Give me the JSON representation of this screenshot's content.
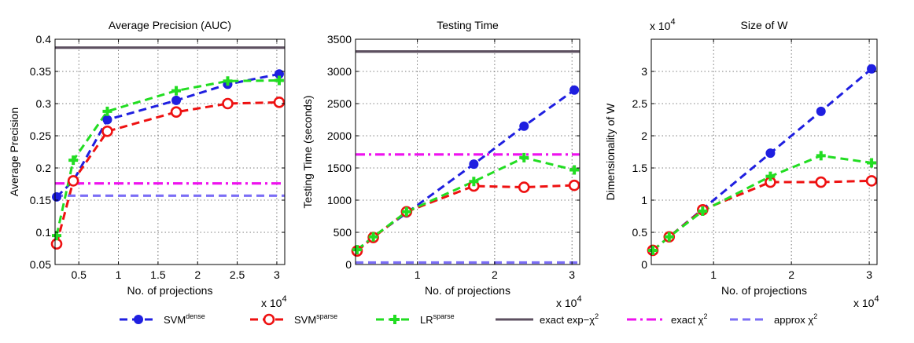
{
  "legend": {
    "items": [
      {
        "key": "svm_dense",
        "base": "SVM",
        "sup": "dense"
      },
      {
        "key": "svm_sparse",
        "base": "SVM",
        "sup": "sparse"
      },
      {
        "key": "lr_sparse",
        "base": "LR",
        "sup": "sparse"
      },
      {
        "key": "exact_exp",
        "base": "exact exp−χ",
        "sup": "2"
      },
      {
        "key": "exact_chi",
        "base": "exact χ",
        "sup": "2"
      },
      {
        "key": "approx_chi",
        "base": "approx χ",
        "sup": "2"
      }
    ]
  },
  "style": {
    "svm_dense": {
      "color": "#1f1fe0",
      "marker": "filled-circle",
      "dash": "dashed"
    },
    "svm_sparse": {
      "color": "#ee1111",
      "marker": "open-circle",
      "dash": "dashed"
    },
    "lr_sparse": {
      "color": "#22dd22",
      "marker": "plus",
      "dash": "dashed"
    },
    "exact_exp": {
      "color": "#5d5060",
      "marker": "none",
      "dash": "solid"
    },
    "exact_chi": {
      "color": "#ee11ee",
      "marker": "none",
      "dash": "dashdot"
    },
    "approx_chi": {
      "color": "#7b6ef6",
      "marker": "none",
      "dash": "dashed"
    }
  },
  "chart_data": [
    {
      "type": "line",
      "title": "Average Precision (AUC)",
      "xlabel": "No. of projections",
      "ylabel": "Average Precision",
      "x_multiplier": "x 10^4",
      "xlim": [
        0.2,
        3.1
      ],
      "ylim": [
        0.05,
        0.4
      ],
      "xticks": [
        0.5,
        1,
        1.5,
        2,
        2.5,
        3
      ],
      "xtick_labels": [
        "0.5",
        "1",
        "1.5",
        "2",
        "2.5",
        "3"
      ],
      "yticks": [
        0.05,
        0.1,
        0.15,
        0.2,
        0.25,
        0.3,
        0.35,
        0.4
      ],
      "ytick_labels": [
        "0.05",
        "0.1",
        "0.15",
        "0.2",
        "0.25",
        "0.3",
        "0.35",
        "0.4"
      ],
      "grid": true,
      "series": [
        {
          "key": "svm_dense",
          "x": [
            0.22,
            0.43,
            0.86,
            1.73,
            2.38,
            3.03
          ],
          "y": [
            0.155,
            0.18,
            0.275,
            0.305,
            0.33,
            0.346
          ]
        },
        {
          "key": "svm_sparse",
          "x": [
            0.22,
            0.43,
            0.86,
            1.73,
            2.38,
            3.03
          ],
          "y": [
            0.082,
            0.18,
            0.257,
            0.287,
            0.3,
            0.302
          ]
        },
        {
          "key": "lr_sparse",
          "x": [
            0.22,
            0.43,
            0.86,
            1.73,
            2.38,
            3.03
          ],
          "y": [
            0.095,
            0.212,
            0.288,
            0.32,
            0.335,
            0.336
          ]
        },
        {
          "key": "exact_exp",
          "x": [
            0.2,
            3.1
          ],
          "y": [
            0.387,
            0.387
          ]
        },
        {
          "key": "exact_chi",
          "x": [
            0.2,
            3.1
          ],
          "y": [
            0.176,
            0.176
          ]
        },
        {
          "key": "approx_chi",
          "x": [
            0.2,
            3.1
          ],
          "y": [
            0.157,
            0.157
          ]
        }
      ]
    },
    {
      "type": "line",
      "title": "Testing Time",
      "xlabel": "No. of projections",
      "ylabel": "Testing Time (seconds)",
      "x_multiplier": "x 10^4",
      "xlim": [
        0.2,
        3.1
      ],
      "ylim": [
        0,
        3500
      ],
      "xticks": [
        1,
        2,
        3
      ],
      "xtick_labels": [
        "1",
        "2",
        "3"
      ],
      "yticks": [
        0,
        500,
        1000,
        1500,
        2000,
        2500,
        3000,
        3500
      ],
      "ytick_labels": [
        "0",
        "500",
        "1000",
        "1500",
        "2000",
        "2500",
        "3000",
        "3500"
      ],
      "grid": true,
      "series": [
        {
          "key": "svm_dense",
          "x": [
            0.22,
            0.43,
            0.86,
            1.73,
            2.38,
            3.03
          ],
          "y": [
            220,
            430,
            800,
            1560,
            2150,
            2710
          ]
        },
        {
          "key": "svm_sparse",
          "x": [
            0.22,
            0.43,
            0.86,
            1.73,
            2.38,
            3.03
          ],
          "y": [
            210,
            420,
            820,
            1220,
            1200,
            1230
          ]
        },
        {
          "key": "lr_sparse",
          "x": [
            0.22,
            0.43,
            0.86,
            1.73,
            2.38,
            3.03
          ],
          "y": [
            230,
            430,
            820,
            1290,
            1660,
            1470
          ]
        },
        {
          "key": "exact_exp",
          "x": [
            0.2,
            3.1
          ],
          "y": [
            3310,
            3310
          ]
        },
        {
          "key": "exact_chi",
          "x": [
            0.2,
            3.1
          ],
          "y": [
            1710,
            1710
          ]
        },
        {
          "key": "approx_chi",
          "x": [
            0.2,
            3.1
          ],
          "y": [
            30,
            30
          ]
        }
      ]
    },
    {
      "type": "line",
      "title": "Size of W",
      "xlabel": "No. of projections",
      "ylabel": "Dimensionality of W",
      "x_multiplier": "x 10^4",
      "y_multiplier": "x 10^4",
      "xlim": [
        0.2,
        3.1
      ],
      "ylim": [
        0,
        3.5
      ],
      "xticks": [
        1,
        2,
        3
      ],
      "xtick_labels": [
        "1",
        "2",
        "3"
      ],
      "yticks": [
        0,
        0.5,
        1,
        1.5,
        2,
        2.5,
        3
      ],
      "ytick_labels": [
        "0",
        "0.5",
        "1",
        "1.5",
        "2",
        "2.5",
        "3"
      ],
      "grid": true,
      "series": [
        {
          "key": "svm_dense",
          "x": [
            0.22,
            0.43,
            0.86,
            1.73,
            2.38,
            3.03
          ],
          "y": [
            0.22,
            0.43,
            0.86,
            1.73,
            2.38,
            3.04
          ]
        },
        {
          "key": "svm_sparse",
          "x": [
            0.22,
            0.43,
            0.86,
            1.73,
            2.38,
            3.03
          ],
          "y": [
            0.22,
            0.43,
            0.85,
            1.28,
            1.28,
            1.3
          ]
        },
        {
          "key": "lr_sparse",
          "x": [
            0.22,
            0.43,
            0.86,
            1.73,
            2.38,
            3.03
          ],
          "y": [
            0.22,
            0.43,
            0.83,
            1.37,
            1.69,
            1.58
          ]
        }
      ]
    }
  ]
}
